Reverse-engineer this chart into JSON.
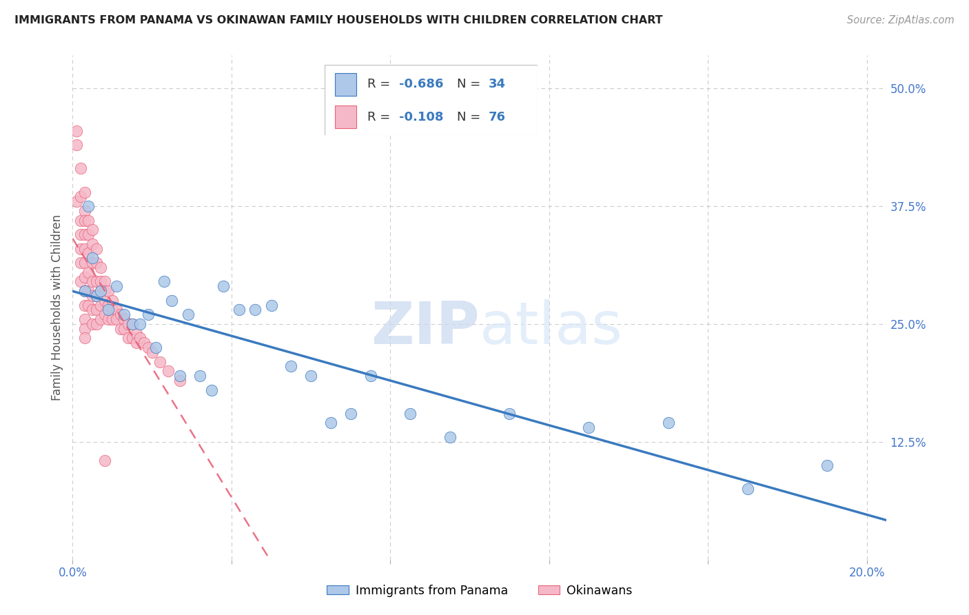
{
  "title": "IMMIGRANTS FROM PANAMA VS OKINAWAN FAMILY HOUSEHOLDS WITH CHILDREN CORRELATION CHART",
  "source": "Source: ZipAtlas.com",
  "ylabel": "Family Households with Children",
  "x_ticks": [
    0.0,
    0.04,
    0.08,
    0.12,
    0.16,
    0.2
  ],
  "x_tick_labels": [
    "0.0%",
    "",
    "",
    "",
    "",
    "20.0%"
  ],
  "y_ticks": [
    0.0,
    0.125,
    0.25,
    0.375,
    0.5
  ],
  "y_tick_labels_right": [
    "",
    "12.5%",
    "25.0%",
    "37.5%",
    "50.0%"
  ],
  "xlim": [
    0.0,
    0.205
  ],
  "ylim": [
    0.0,
    0.535
  ],
  "panama_color": "#adc8e8",
  "okinawa_color": "#f5b8c8",
  "panama_line_color": "#3a7abf",
  "okinawa_line_color": "#e8637a",
  "watermark_zip": "ZIP",
  "watermark_atlas": "atlas",
  "bottom_legend_panama": "Immigrants from Panama",
  "bottom_legend_okinawa": "Okinawans",
  "panama_x": [
    0.003,
    0.004,
    0.005,
    0.006,
    0.007,
    0.009,
    0.011,
    0.013,
    0.015,
    0.017,
    0.019,
    0.021,
    0.023,
    0.025,
    0.027,
    0.029,
    0.032,
    0.035,
    0.038,
    0.042,
    0.046,
    0.05,
    0.055,
    0.06,
    0.065,
    0.07,
    0.075,
    0.085,
    0.095,
    0.11,
    0.13,
    0.15,
    0.17,
    0.19
  ],
  "panama_y": [
    0.285,
    0.375,
    0.32,
    0.28,
    0.285,
    0.265,
    0.29,
    0.26,
    0.25,
    0.25,
    0.26,
    0.225,
    0.295,
    0.275,
    0.195,
    0.26,
    0.195,
    0.18,
    0.29,
    0.265,
    0.265,
    0.27,
    0.205,
    0.195,
    0.145,
    0.155,
    0.195,
    0.155,
    0.13,
    0.155,
    0.14,
    0.145,
    0.075,
    0.1
  ],
  "okinawa_x": [
    0.001,
    0.001,
    0.001,
    0.002,
    0.002,
    0.002,
    0.002,
    0.002,
    0.002,
    0.002,
    0.003,
    0.003,
    0.003,
    0.003,
    0.003,
    0.003,
    0.003,
    0.003,
    0.003,
    0.003,
    0.003,
    0.003,
    0.004,
    0.004,
    0.004,
    0.004,
    0.004,
    0.004,
    0.005,
    0.005,
    0.005,
    0.005,
    0.005,
    0.005,
    0.005,
    0.006,
    0.006,
    0.006,
    0.006,
    0.006,
    0.006,
    0.007,
    0.007,
    0.007,
    0.007,
    0.007,
    0.008,
    0.008,
    0.008,
    0.008,
    0.009,
    0.009,
    0.009,
    0.01,
    0.01,
    0.01,
    0.011,
    0.011,
    0.012,
    0.012,
    0.013,
    0.013,
    0.014,
    0.014,
    0.015,
    0.015,
    0.016,
    0.016,
    0.017,
    0.018,
    0.019,
    0.02,
    0.022,
    0.024,
    0.027,
    0.008
  ],
  "okinawa_y": [
    0.455,
    0.44,
    0.38,
    0.415,
    0.385,
    0.36,
    0.345,
    0.33,
    0.315,
    0.295,
    0.39,
    0.37,
    0.36,
    0.345,
    0.33,
    0.315,
    0.3,
    0.285,
    0.27,
    0.255,
    0.245,
    0.235,
    0.36,
    0.345,
    0.325,
    0.305,
    0.285,
    0.27,
    0.35,
    0.335,
    0.315,
    0.295,
    0.28,
    0.265,
    0.25,
    0.33,
    0.315,
    0.295,
    0.28,
    0.265,
    0.25,
    0.31,
    0.295,
    0.285,
    0.27,
    0.255,
    0.295,
    0.285,
    0.275,
    0.26,
    0.285,
    0.27,
    0.255,
    0.275,
    0.265,
    0.255,
    0.265,
    0.255,
    0.26,
    0.245,
    0.255,
    0.245,
    0.25,
    0.235,
    0.25,
    0.235,
    0.24,
    0.23,
    0.235,
    0.23,
    0.225,
    0.22,
    0.21,
    0.2,
    0.19,
    0.105
  ]
}
